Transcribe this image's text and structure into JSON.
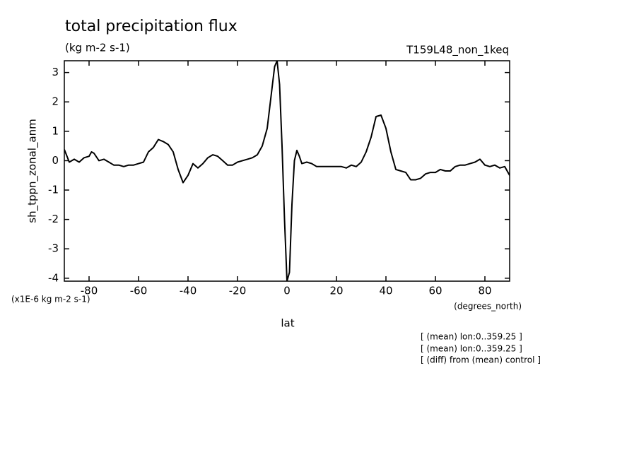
{
  "chart_data": {
    "type": "line",
    "title": "total precipitation flux",
    "subtitle": "(kg m-2 s-1)",
    "experiment": "T159L48_non_1keq",
    "y_label": "sh_tppn_zonal_anm",
    "y_units": "(x1E-6 kg m-2 s-1)",
    "x_units": "(degrees_north)",
    "x_label": "lat",
    "notes": [
      "[ (mean) lon:0..359.25 ]",
      "[ (mean) lon:0..359.25 ]",
      "[ (diff) from (mean) control ]"
    ],
    "x": [
      -90,
      -88,
      -86,
      -84,
      -82,
      -80,
      -79,
      -78,
      -76,
      -74,
      -72,
      -70,
      -68,
      -66,
      -64,
      -62,
      -60,
      -58,
      -56,
      -54,
      -52,
      -50,
      -48,
      -46,
      -44,
      -42,
      -40,
      -38,
      -36,
      -34,
      -32,
      -30,
      -28,
      -26,
      -24,
      -22,
      -20,
      -18,
      -16,
      -14,
      -12,
      -10,
      -8,
      -6,
      -5,
      -4,
      -3,
      -2,
      -1,
      0,
      1,
      2,
      3,
      4,
      5,
      6,
      8,
      10,
      12,
      14,
      16,
      18,
      20,
      22,
      24,
      26,
      28,
      30,
      32,
      34,
      36,
      38,
      40,
      42,
      44,
      46,
      48,
      50,
      52,
      54,
      56,
      58,
      60,
      62,
      64,
      66,
      68,
      70,
      72,
      74,
      76,
      78,
      80,
      82,
      84,
      86,
      88,
      90
    ],
    "series": [
      {
        "name": "sh_tppn_zonal_anm",
        "color": "#000000",
        "values": [
          0.38,
          -0.05,
          0.05,
          -0.05,
          0.1,
          0.15,
          0.3,
          0.25,
          0.0,
          0.05,
          -0.05,
          -0.15,
          -0.15,
          -0.2,
          -0.15,
          -0.15,
          -0.1,
          -0.05,
          0.3,
          0.45,
          0.72,
          0.65,
          0.55,
          0.3,
          -0.3,
          -0.75,
          -0.5,
          -0.1,
          -0.25,
          -0.1,
          0.1,
          0.2,
          0.15,
          0.0,
          -0.15,
          -0.15,
          -0.05,
          0.0,
          0.05,
          0.1,
          0.2,
          0.5,
          1.1,
          2.5,
          3.2,
          3.4,
          2.6,
          0.5,
          -2.0,
          -4.1,
          -3.8,
          -1.5,
          0.0,
          0.35,
          0.15,
          -0.1,
          -0.05,
          -0.1,
          -0.2,
          -0.2,
          -0.2,
          -0.2,
          -0.2,
          -0.2,
          -0.25,
          -0.15,
          -0.2,
          -0.05,
          0.3,
          0.8,
          1.5,
          1.55,
          1.1,
          0.3,
          -0.3,
          -0.35,
          -0.4,
          -0.65,
          -0.65,
          -0.6,
          -0.45,
          -0.4,
          -0.4,
          -0.3,
          -0.35,
          -0.35,
          -0.2,
          -0.15,
          -0.15,
          -0.1,
          -0.05,
          0.05,
          -0.15,
          -0.2,
          -0.15,
          -0.25,
          -0.2,
          -0.5
        ]
      }
    ],
    "xlim": [
      -90,
      90
    ],
    "ylim": [
      -4.1,
      3.4
    ],
    "xticks": [
      -80,
      -60,
      -40,
      -20,
      0,
      20,
      40,
      60,
      80
    ],
    "yticks": [
      -4,
      -3,
      -2,
      -1,
      0,
      1,
      2,
      3
    ]
  }
}
